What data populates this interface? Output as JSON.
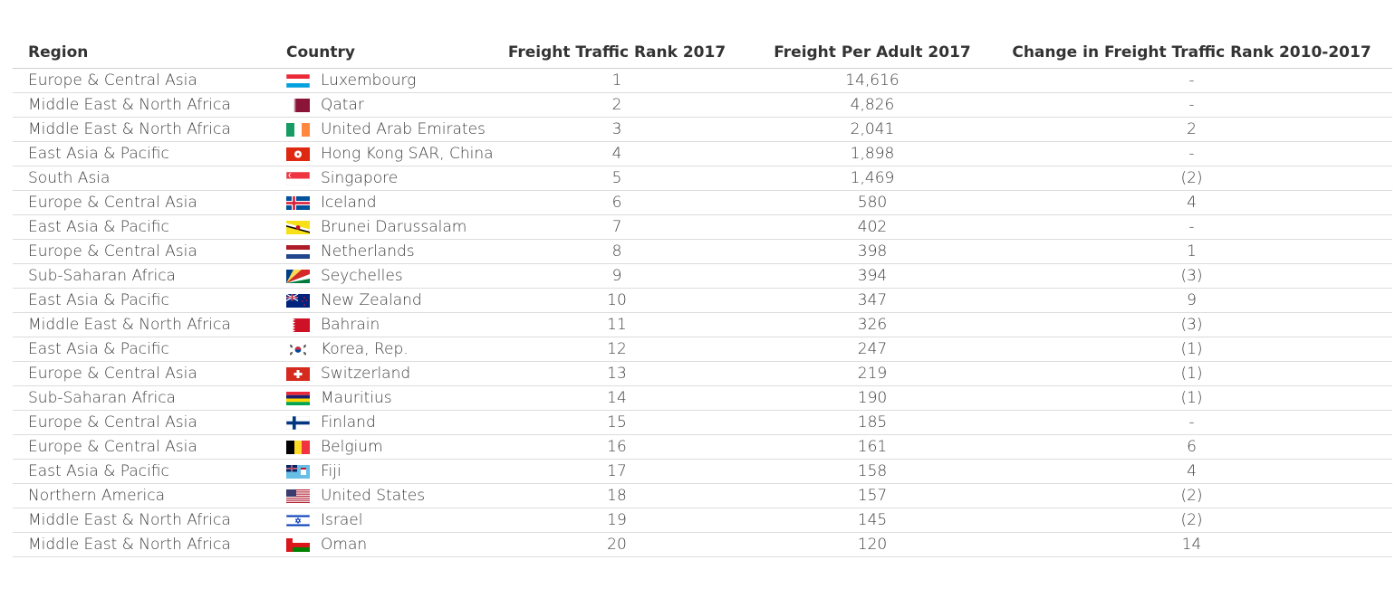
{
  "chart_data": {
    "type": "table",
    "columns": [
      "Region",
      "Country",
      "Freight Traffic Rank 2017",
      "Freight Per Adult 2017",
      "Change in Freight Traffic Rank 2010-2017"
    ],
    "rows": [
      {
        "region": "Europe & Central Asia",
        "country": "Luxembourg",
        "flag": "luxembourg-flag",
        "rank": "1",
        "freight": "14,616",
        "change": "-",
        "dir": "none"
      },
      {
        "region": "Middle East & North Africa",
        "country": "Qatar",
        "flag": "qatar-flag",
        "rank": "2",
        "freight": "4,826",
        "change": "-",
        "dir": "none"
      },
      {
        "region": "Middle East & North Africa",
        "country": "United Arab Emirates",
        "flag": "ireland-flag",
        "rank": "3",
        "freight": "2,041",
        "change": "2",
        "dir": "up"
      },
      {
        "region": "East Asia & Pacific",
        "country": "Hong Kong SAR, China",
        "flag": "hong-kong-flag",
        "rank": "4",
        "freight": "1,898",
        "change": "-",
        "dir": "none"
      },
      {
        "region": "South Asia",
        "country": "Singapore",
        "flag": "singapore-flag",
        "rank": "5",
        "freight": "1,469",
        "change": "(2)",
        "dir": "down"
      },
      {
        "region": "Europe & Central Asia",
        "country": "Iceland",
        "flag": "iceland-flag",
        "rank": "6",
        "freight": "580",
        "change": "4",
        "dir": "up"
      },
      {
        "region": "East Asia & Pacific",
        "country": "Brunei Darussalam",
        "flag": "brunei-flag",
        "rank": "7",
        "freight": "402",
        "change": "-",
        "dir": "none"
      },
      {
        "region": "Europe & Central Asia",
        "country": "Netherlands",
        "flag": "netherlands-flag",
        "rank": "8",
        "freight": "398",
        "change": "1",
        "dir": "up"
      },
      {
        "region": "Sub-Saharan Africa",
        "country": "Seychelles",
        "flag": "seychelles-flag",
        "rank": "9",
        "freight": "394",
        "change": "(3)",
        "dir": "down"
      },
      {
        "region": "East Asia & Pacific",
        "country": "New Zealand",
        "flag": "new-zealand-flag",
        "rank": "10",
        "freight": "347",
        "change": "9",
        "dir": "up"
      },
      {
        "region": "Middle East & North Africa",
        "country": "Bahrain",
        "flag": "bahrain-flag",
        "rank": "11",
        "freight": "326",
        "change": "(3)",
        "dir": "down"
      },
      {
        "region": "East Asia & Pacific",
        "country": "Korea, Rep.",
        "flag": "korea-flag",
        "rank": "12",
        "freight": "247",
        "change": "(1)",
        "dir": "down"
      },
      {
        "region": "Europe & Central Asia",
        "country": "Switzerland",
        "flag": "switzerland-flag",
        "rank": "13",
        "freight": "219",
        "change": "(1)",
        "dir": "down"
      },
      {
        "region": "Sub-Saharan Africa",
        "country": "Mauritius",
        "flag": "mauritius-flag",
        "rank": "14",
        "freight": "190",
        "change": "(1)",
        "dir": "down"
      },
      {
        "region": "Europe & Central Asia",
        "country": "Finland",
        "flag": "finland-flag",
        "rank": "15",
        "freight": "185",
        "change": "-",
        "dir": "none"
      },
      {
        "region": "Europe & Central Asia",
        "country": "Belgium",
        "flag": "belgium-flag",
        "rank": "16",
        "freight": "161",
        "change": "6",
        "dir": "up"
      },
      {
        "region": "East Asia & Pacific",
        "country": "Fiji",
        "flag": "fiji-flag",
        "rank": "17",
        "freight": "158",
        "change": "4",
        "dir": "up"
      },
      {
        "region": "Northern America",
        "country": "United States",
        "flag": "united-states-flag",
        "rank": "18",
        "freight": "157",
        "change": "(2)",
        "dir": "down"
      },
      {
        "region": "Middle East & North Africa",
        "country": "Israel",
        "flag": "israel-flag",
        "rank": "19",
        "freight": "145",
        "change": "(2)",
        "dir": "down"
      },
      {
        "region": "Middle East & North Africa",
        "country": "Oman",
        "flag": "oman-flag",
        "rank": "20",
        "freight": "120",
        "change": "14",
        "dir": "up"
      }
    ]
  },
  "colors": {
    "positive_change": "#22bb22",
    "negative_change": "#e01010",
    "row_divider": "#dcdcdc"
  }
}
